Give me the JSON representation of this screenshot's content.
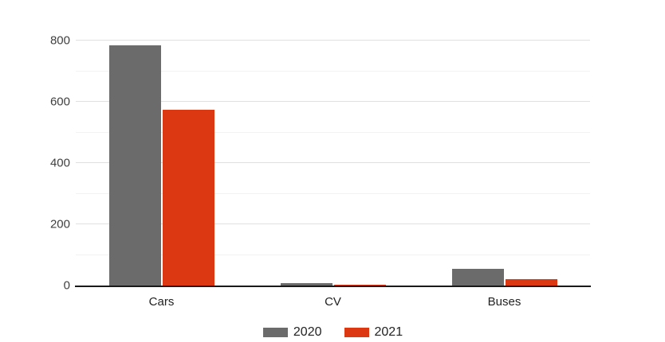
{
  "chart_data": {
    "type": "bar",
    "title": "",
    "xlabel": "",
    "ylabel": "",
    "categories": [
      "Cars",
      "CV",
      "Buses"
    ],
    "series": [
      {
        "name": "2020",
        "color": "#6b6b6b",
        "values": [
          785,
          7,
          55
        ]
      },
      {
        "name": "2021",
        "color": "#dc3912",
        "values": [
          575,
          2,
          20
        ]
      }
    ],
    "ylim": [
      0,
      800
    ],
    "yticks": [
      0,
      200,
      400,
      600,
      800
    ],
    "minor_gridlines": [
      100,
      300,
      500,
      700
    ],
    "grid": true,
    "legend_position": "bottom"
  },
  "colors": {
    "bar_2020": "#6b6b6b",
    "bar_2021": "#dc3912",
    "axis_line": "#1a1a1a",
    "major_gridline": "#e0e0e0",
    "minor_gridline": "#f2f2f2",
    "tick_label": "#404040",
    "category_label": "#222222",
    "legend_label": "#222222",
    "background": "#ffffff"
  }
}
